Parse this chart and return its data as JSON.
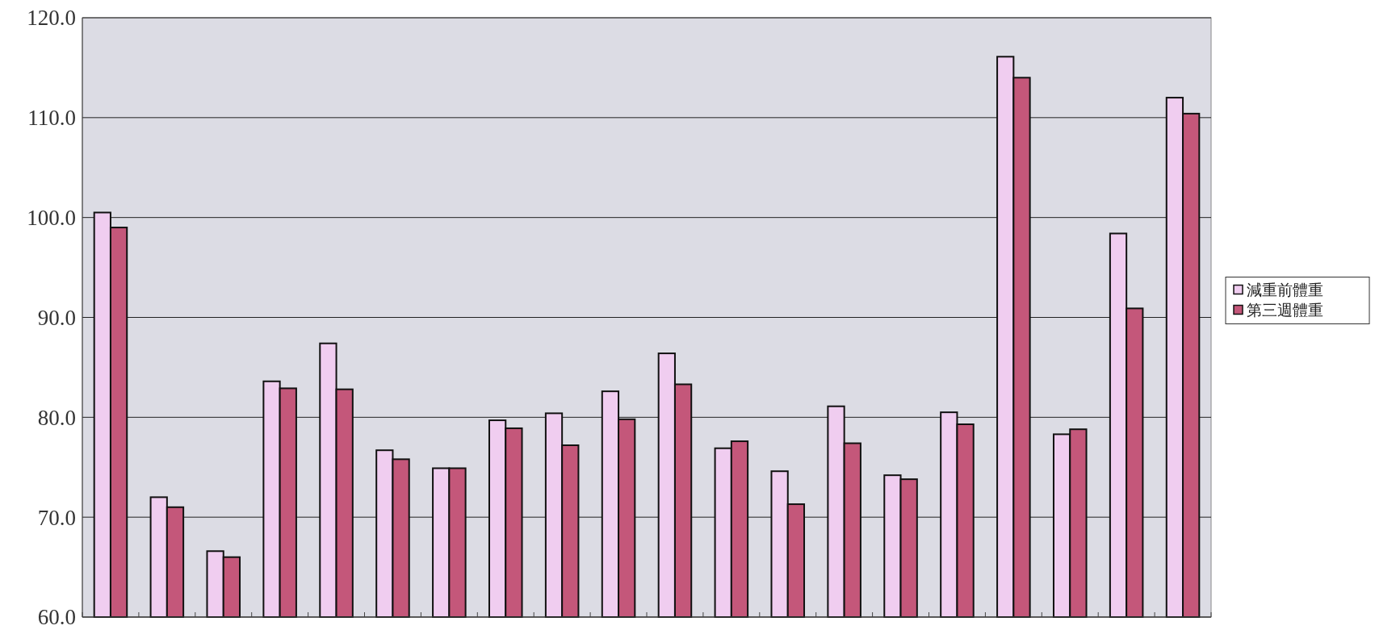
{
  "chart_data": {
    "type": "bar",
    "categories": [
      null,
      null,
      null,
      null,
      null,
      null,
      null,
      null,
      null,
      null,
      null,
      null,
      null,
      null,
      null,
      null,
      null,
      null,
      null,
      null
    ],
    "series": [
      {
        "name": "減重前體重",
        "color": "#f0cdf0",
        "values": [
          100.5,
          72.0,
          66.6,
          83.6,
          87.4,
          76.7,
          74.9,
          79.7,
          80.4,
          82.6,
          86.4,
          76.9,
          74.6,
          81.1,
          74.2,
          80.5,
          116.1,
          78.3,
          98.4,
          112.0
        ]
      },
      {
        "name": "第三週體重",
        "color": "#c4577a",
        "values": [
          99.0,
          71.0,
          66.0,
          82.9,
          82.8,
          75.8,
          74.9,
          78.9,
          77.2,
          79.8,
          83.3,
          77.6,
          71.3,
          77.4,
          73.8,
          79.3,
          114.0,
          78.8,
          90.9,
          110.4
        ]
      }
    ],
    "ylim": [
      60,
      120
    ],
    "yticks": [
      {
        "value": 60,
        "label": "60.0"
      },
      {
        "value": 70,
        "label": "70.0"
      },
      {
        "value": 80,
        "label": "80.0"
      },
      {
        "value": 90,
        "label": "90.0"
      },
      {
        "value": 100,
        "label": "100.0"
      },
      {
        "value": 110,
        "label": "110.0"
      },
      {
        "value": 120,
        "label": "120.0"
      }
    ],
    "grid": "y",
    "legend": "right"
  }
}
